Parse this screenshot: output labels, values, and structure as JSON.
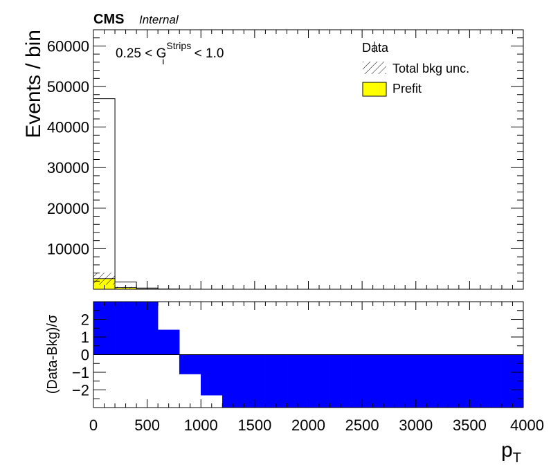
{
  "header": {
    "experiment": "CMS",
    "status": "Internal"
  },
  "annotation": {
    "pre": "0.25 < G",
    "sup": "Strips",
    "sub": "i",
    "post": " < 1.0"
  },
  "legend": {
    "location": "top-right",
    "items": [
      {
        "label": "Data",
        "style": "marker"
      },
      {
        "label": "Total bkg unc.",
        "style": "hatch"
      },
      {
        "label": "Prefit",
        "style": "fill",
        "color": "#ffff00"
      }
    ]
  },
  "colors": {
    "prefit": "#ffff00",
    "ratio_fill": "#0000ff",
    "frame": "#000000"
  },
  "chart_data": [
    {
      "type": "bar",
      "panel": "main",
      "ylabel": "Events / bin",
      "xlim": [
        0,
        4000
      ],
      "ylim": [
        0,
        64000
      ],
      "yticks": [
        10000,
        20000,
        30000,
        40000,
        50000,
        60000
      ],
      "bin_edges": [
        0,
        200,
        400,
        600,
        800,
        1000,
        1200,
        1400,
        1600,
        1800,
        2000,
        2200,
        2400,
        2600,
        2800,
        3000,
        3200,
        3400,
        3600,
        3800,
        4000
      ],
      "series": [
        {
          "name": "Data",
          "values": [
            47000,
            1800,
            300,
            60,
            15,
            5,
            2,
            1,
            0,
            0,
            0,
            0,
            0,
            0,
            0,
            0,
            0,
            0,
            0,
            0
          ]
        },
        {
          "name": "Prefit",
          "values": [
            2600,
            400,
            60,
            10,
            4,
            2,
            1,
            1,
            0,
            0,
            0,
            0,
            0,
            0,
            0,
            0,
            0,
            0,
            0,
            0
          ]
        },
        {
          "name": "Total bkg unc.",
          "values": [
            1500,
            200,
            40,
            10,
            3,
            1,
            1,
            0,
            0,
            0,
            0,
            0,
            0,
            0,
            0,
            0,
            0,
            0,
            0,
            0
          ]
        }
      ]
    },
    {
      "type": "bar",
      "panel": "ratio",
      "xlabel": "p_T",
      "ylabel": "(Data-Bkg)/σ",
      "xlim": [
        0,
        4000
      ],
      "ylim": [
        -3,
        3
      ],
      "yticks": [
        -2,
        -1,
        0,
        1,
        2
      ],
      "xticks": [
        0,
        500,
        1000,
        1500,
        2000,
        2500,
        3000,
        3500,
        4000
      ],
      "bin_edges": [
        0,
        200,
        400,
        600,
        800,
        1000,
        1200,
        1400,
        1600,
        1800,
        2000,
        2200,
        2400,
        2600,
        2800,
        3000,
        3200,
        3400,
        3600,
        3800,
        4000
      ],
      "values": [
        3,
        3,
        3,
        1.4,
        -1.1,
        -2.3,
        -3,
        -3,
        -3,
        -3,
        -3,
        -3,
        -3,
        -3,
        -3,
        -3,
        -3,
        -3,
        -3,
        -3
      ]
    }
  ]
}
